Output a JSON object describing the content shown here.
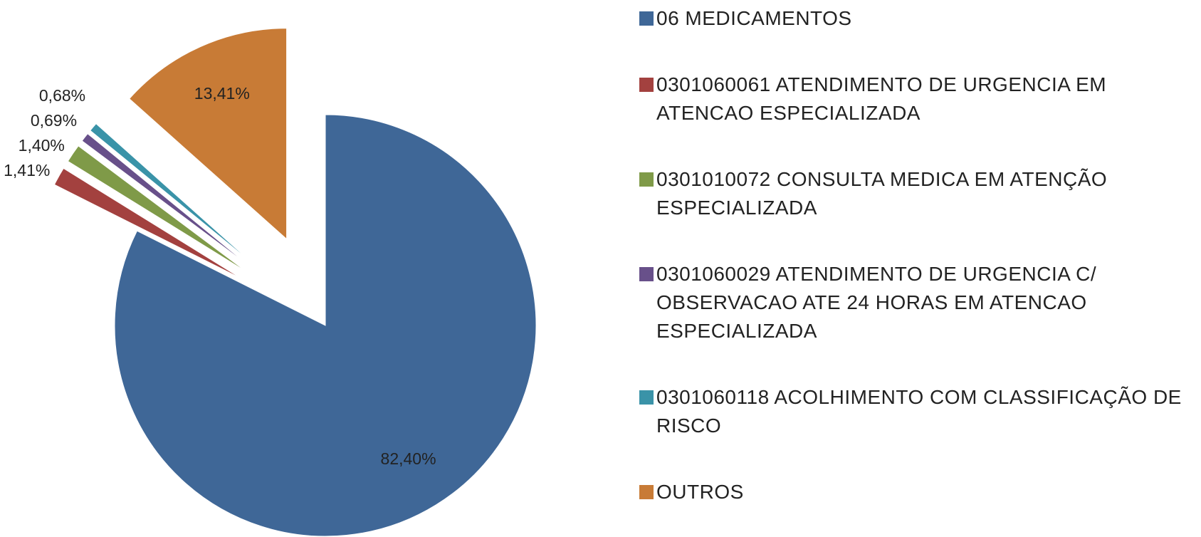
{
  "chart_data": {
    "type": "pie",
    "categories": [
      "06 MEDICAMENTOS",
      "0301060061 ATENDIMENTO DE URGENCIA EM ATENCAO ESPECIALIZADA",
      "0301010072 CONSULTA MEDICA EM ATENÇÃO ESPECIALIZADA",
      "0301060029 ATENDIMENTO DE URGENCIA C/ OBSERVACAO ATE 24 HORAS EM ATENCAO ESPECIALIZADA",
      "0301060118 ACOLHIMENTO COM CLASSIFICAÇÃO DE RISCO",
      "OUTROS"
    ],
    "values": [
      82.4,
      1.41,
      1.4,
      0.69,
      0.68,
      13.41
    ],
    "value_labels": [
      "82,40%",
      "1,41%",
      "1,40%",
      "0,69%",
      "0,68%",
      "13,41%"
    ],
    "colors": [
      "#3f6797",
      "#a3413f",
      "#7f9a48",
      "#68508a",
      "#3a93a8",
      "#c87b36"
    ],
    "legend": "right"
  }
}
